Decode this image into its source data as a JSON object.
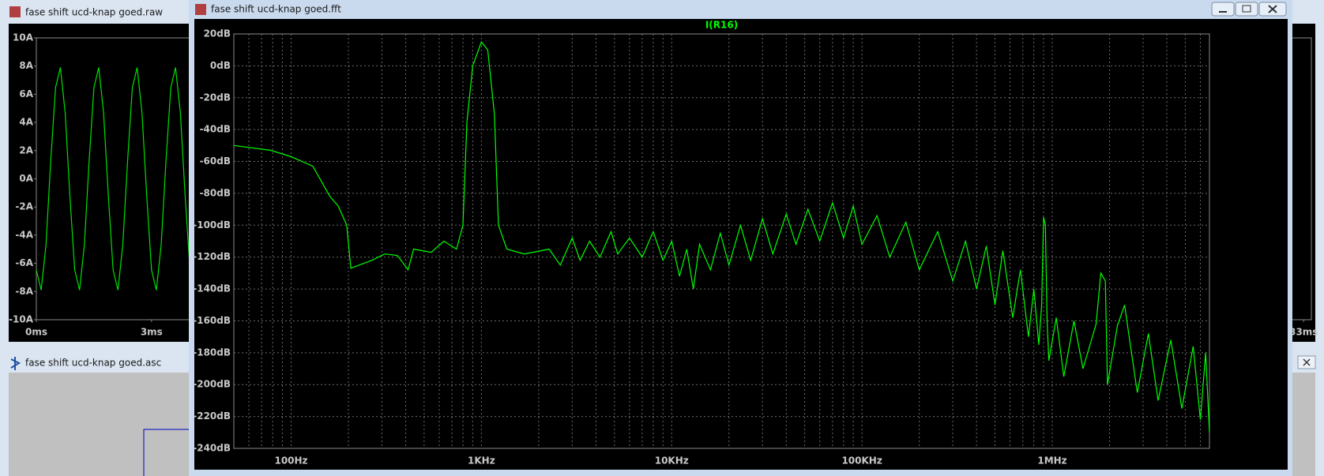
{
  "windows": [
    {
      "title": "fase shift ucd-knap goed.raw"
    },
    {
      "title": "fase shift ucd-knap goed.asc"
    },
    {
      "title": "fase shift ucd-knap goed.fft"
    }
  ],
  "chart_data": [
    {
      "type": "line",
      "xlim": [
        0,
        33.2
      ],
      "ylim": [
        -10,
        10
      ],
      "xticks": [
        {
          "value": 0,
          "label": "0ms"
        },
        {
          "value": 3,
          "label": "3ms"
        },
        {
          "value": 33,
          "label": "33ms"
        }
      ],
      "yticks": [
        {
          "value": 10,
          "label": "10A"
        },
        {
          "value": 8,
          "label": "8A"
        },
        {
          "value": 6,
          "label": "6A"
        },
        {
          "value": 4,
          "label": "4A"
        },
        {
          "value": 2,
          "label": "2A"
        },
        {
          "value": 0,
          "label": "0A"
        },
        {
          "value": -2,
          "label": "-2A"
        },
        {
          "value": -4,
          "label": "-4A"
        },
        {
          "value": -6,
          "label": "-6A"
        },
        {
          "value": -8,
          "label": "-8A"
        },
        {
          "value": -10,
          "label": "-10A"
        }
      ],
      "grid": false,
      "x": [
        0,
        0.125,
        0.25,
        0.375,
        0.5,
        0.625,
        0.75,
        0.875,
        1,
        1.125,
        1.25,
        1.375,
        1.5,
        1.625,
        1.75,
        1.875,
        2,
        2.125,
        2.25,
        2.375,
        2.5,
        2.625,
        2.75,
        2.875,
        3,
        3.125,
        3.25,
        3.375,
        3.5,
        3.625,
        3.75,
        3.875,
        4
      ],
      "series": [
        {
          "color": "#00e000",
          "values": [
            -6.47,
            -7.9,
            -4.7,
            1.25,
            6.47,
            7.9,
            4.7,
            -1.25,
            -6.47,
            -7.9,
            -4.7,
            1.25,
            6.47,
            7.9,
            4.7,
            -1.25,
            -6.47,
            -7.9,
            -4.7,
            1.25,
            6.47,
            7.9,
            4.7,
            -1.25,
            -6.47,
            -7.9,
            -4.7,
            1.25,
            6.47,
            7.9,
            4.7,
            -1.25,
            -6.47
          ]
        }
      ]
    },
    {
      "type": "line",
      "title": "I(R16)",
      "xscale": "log",
      "xlim": [
        50,
        6700000
      ],
      "ylim": [
        -240,
        20
      ],
      "grid": true,
      "xticks": [
        {
          "value": 100,
          "label": "100Hz"
        },
        {
          "value": 1000,
          "label": "1KHz"
        },
        {
          "value": 10000,
          "label": "10KHz"
        },
        {
          "value": 100000,
          "label": "100KHz"
        },
        {
          "value": 1000000,
          "label": "1MHz"
        }
      ],
      "minor_xticks": [
        60,
        70,
        80,
        90,
        200,
        300,
        400,
        500,
        600,
        700,
        800,
        900,
        2000,
        3000,
        4000,
        5000,
        6000,
        7000,
        8000,
        9000,
        20000,
        30000,
        40000,
        50000,
        60000,
        70000,
        80000,
        90000,
        200000,
        300000,
        400000,
        500000,
        600000,
        700000,
        800000,
        900000,
        2000000,
        3000000,
        4000000,
        5000000,
        6000000
      ],
      "yticks": [
        {
          "value": 20,
          "label": "20dB"
        },
        {
          "value": 0,
          "label": "0dB"
        },
        {
          "value": -20,
          "label": "-20dB"
        },
        {
          "value": -40,
          "label": "-40dB"
        },
        {
          "value": -60,
          "label": "-60dB"
        },
        {
          "value": -80,
          "label": "-80dB"
        },
        {
          "value": -100,
          "label": "-100dB"
        },
        {
          "value": -120,
          "label": "-120dB"
        },
        {
          "value": -140,
          "label": "-140dB"
        },
        {
          "value": -160,
          "label": "-160dB"
        },
        {
          "value": -180,
          "label": "-180dB"
        },
        {
          "value": -200,
          "label": "-200dB"
        },
        {
          "value": -220,
          "label": "-220dB"
        },
        {
          "value": -240,
          "label": "-240dB"
        }
      ],
      "x": [
        50,
        78,
        100,
        130,
        160,
        177,
        196,
        206,
        266,
        310,
        362,
        412,
        440,
        545,
        635,
        740,
        800,
        840,
        900,
        1000,
        1080,
        1170,
        1230,
        1360,
        1680,
        2270,
        2600,
        3000,
        3300,
        3700,
        4200,
        4800,
        5200,
        6000,
        7000,
        8000,
        9000,
        10000,
        11000,
        12000,
        13000,
        14000,
        16000,
        18000,
        20000,
        23000,
        26000,
        30000,
        34000,
        40000,
        45000,
        52000,
        60000,
        70000,
        80000,
        90000,
        100000,
        120000,
        140000,
        170000,
        200000,
        250000,
        300000,
        350000,
        400000,
        450000,
        500000,
        550000,
        620000,
        680000,
        750000,
        800000,
        850000,
        880000,
        900000,
        920000,
        940000,
        960000,
        1050000,
        1150000,
        1300000,
        1450000,
        1700000,
        1800000,
        1900000,
        1950000,
        2200000,
        2400000,
        2500000,
        2800000,
        3200000,
        3600000,
        4200000,
        4800000,
        5500000,
        6000000,
        6400000,
        6700000
      ],
      "series": [
        {
          "name": "I(R16)",
          "color": "#00ff00",
          "values": [
            -50,
            -53,
            -57,
            -63,
            -82,
            -88,
            -100,
            -127,
            -122,
            -118,
            -119,
            -128,
            -115,
            -117,
            -110,
            -115,
            -100,
            -35,
            0,
            15,
            10,
            -30,
            -100,
            -115,
            -118,
            -115,
            -125,
            -108,
            -122,
            -110,
            -120,
            -104,
            -118,
            -108,
            -120,
            -104,
            -122,
            -110,
            -132,
            -115,
            -140,
            -112,
            -128,
            -105,
            -125,
            -100,
            -122,
            -96,
            -118,
            -93,
            -112,
            -90,
            -110,
            -86,
            -108,
            -88,
            -112,
            -94,
            -120,
            -98,
            -128,
            -104,
            -135,
            -110,
            -140,
            -113,
            -150,
            -116,
            -158,
            -128,
            -170,
            -140,
            -175,
            -150,
            -95,
            -100,
            -160,
            -185,
            -158,
            -195,
            -160,
            -190,
            -162,
            -130,
            -135,
            -200,
            -163,
            -150,
            -165,
            -205,
            -168,
            -210,
            -172,
            -215,
            -176,
            -222,
            -180,
            -230
          ]
        }
      ]
    }
  ]
}
